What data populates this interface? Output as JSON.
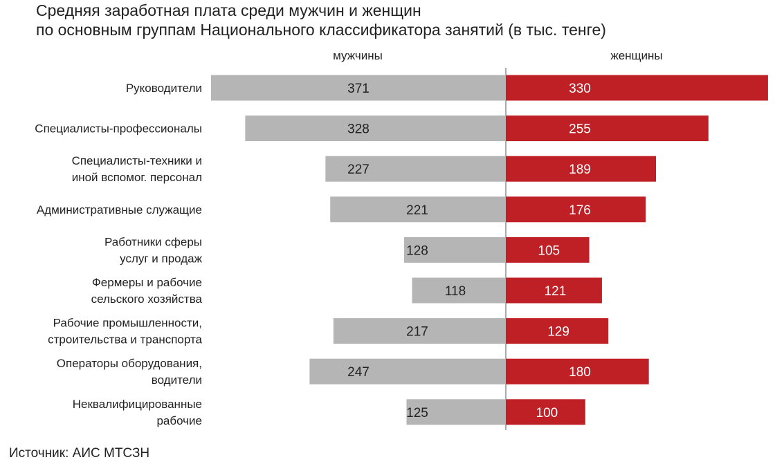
{
  "chart_data": {
    "type": "bar",
    "orientation": "horizontal-butterfly",
    "title": [
      "Средняя заработная плата среди мужчин и женщин",
      "по основным группам Национального классификатора занятий (в тыс. тенге)"
    ],
    "categories": [
      [
        "Руководители"
      ],
      [
        "Специалисты-профессионалы"
      ],
      [
        "Специалисты-техники и",
        "иной вспомог. персонал"
      ],
      [
        "Административные  служащие"
      ],
      [
        "Работники сферы",
        "услуг и продаж"
      ],
      [
        "Фермеры и рабочие",
        "сельского хозяйства"
      ],
      [
        "Рабочие промышленности,",
        "строительства и транспорта"
      ],
      [
        "Операторы оборудования,",
        "водители"
      ],
      [
        "Неквалифицированные",
        "рабочие"
      ]
    ],
    "series": [
      {
        "name": "мужчины",
        "side": "left",
        "color": "#b5b5b5",
        "label_color": "#222222",
        "values": [
          371,
          328,
          227,
          221,
          128,
          118,
          217,
          247,
          125
        ]
      },
      {
        "name": "женщины",
        "side": "right",
        "color": "#bf2026",
        "label_color": "#ffffff",
        "values": [
          330,
          255,
          189,
          176,
          105,
          121,
          129,
          180,
          100
        ]
      }
    ],
    "xlim": [
      0,
      380
    ],
    "grid": false,
    "legend": "series names above each half",
    "source": "Источник: АИС МТСЗН"
  }
}
